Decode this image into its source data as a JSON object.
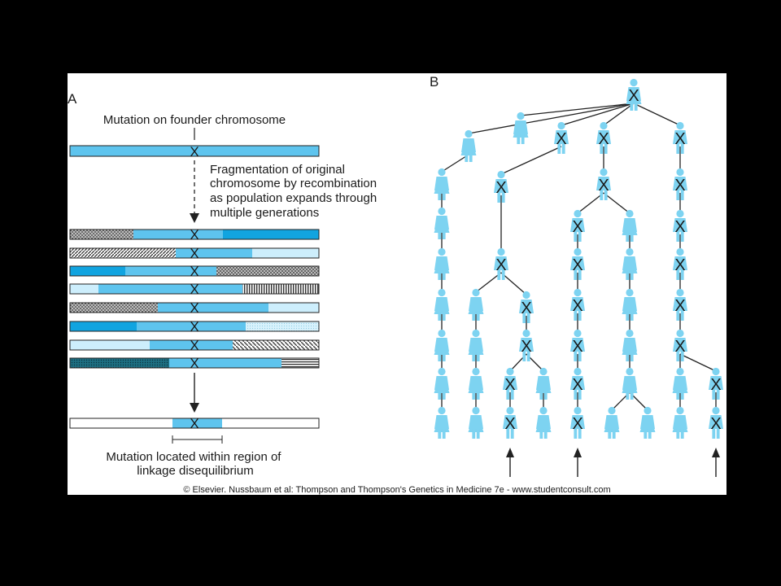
{
  "panel_a": {
    "label": "A",
    "founder_caption": "Mutation on founder chromosome",
    "fragmentation_lines": [
      "Fragmentation of original",
      "chromosome by recombination",
      "as population expands through",
      "multiple generations"
    ],
    "result_lines": [
      "Mutation located within region of",
      "linkage disequilibrium"
    ],
    "mutation_mark": "X"
  },
  "panel_b": {
    "label": "B"
  },
  "colors": {
    "founder_blue": "#5ec4ee",
    "dark_blue": "#11a4e0",
    "light_blue": "#cdeefc",
    "person_blue": "#7dd3f1"
  },
  "copyright": "© Elsevier. Nussbaum et al: Thompson and Thompson's Genetics in Medicine 7e - www.studentconsult.com"
}
